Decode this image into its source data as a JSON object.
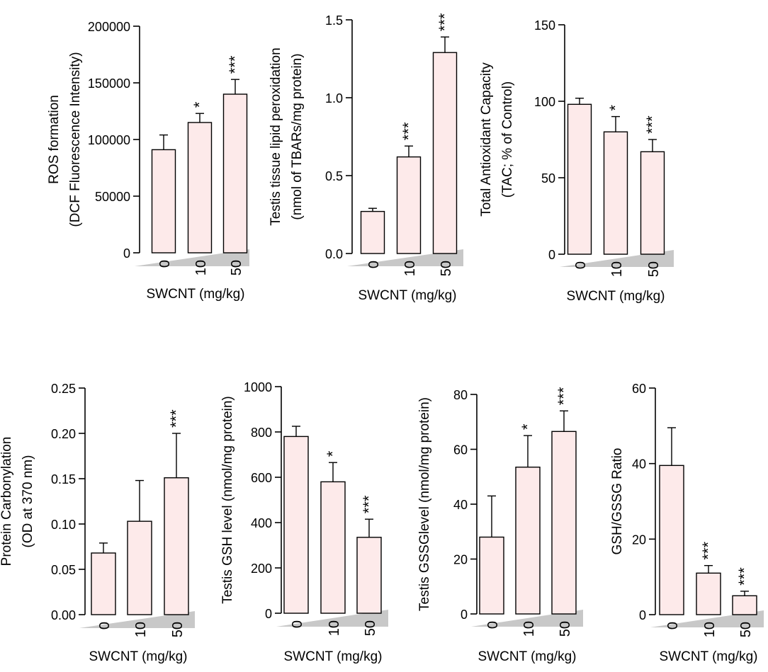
{
  "colors": {
    "bar_fill": "#fdeaea",
    "stroke": "#000000",
    "wedge": "#c8c8c8"
  },
  "chart_data": [
    {
      "type": "bar",
      "ylabel_lines": [
        "ROS formation",
        "(DCF Fluorescence Intensity)"
      ],
      "xlabel": "SWCNT (mg/kg)",
      "categories": [
        "0",
        "10",
        "50"
      ],
      "values": [
        91000,
        115000,
        140000
      ],
      "errors": [
        13000,
        8000,
        13000
      ],
      "significance": [
        "",
        "*",
        "***"
      ],
      "ylim": [
        0,
        200000
      ],
      "yticks": [
        0,
        50000,
        100000,
        150000,
        200000
      ],
      "ytick_labels": [
        "0",
        "50000",
        "100000",
        "150000",
        "200000"
      ]
    },
    {
      "type": "bar",
      "ylabel_lines": [
        "Testis tissue lipid peroxidation",
        "(nmol of TBARs/mg protein)"
      ],
      "xlabel": "SWCNT (mg/kg)",
      "categories": [
        "0",
        "10",
        "50"
      ],
      "values": [
        0.27,
        0.62,
        1.29
      ],
      "errors": [
        0.02,
        0.07,
        0.1
      ],
      "significance": [
        "",
        "***",
        "***"
      ],
      "ylim": [
        0,
        1.5
      ],
      "yticks": [
        0,
        0.5,
        1.0,
        1.5
      ],
      "ytick_labels": [
        "0.0",
        "0.5",
        "1.0",
        "1.5"
      ]
    },
    {
      "type": "bar",
      "ylabel_lines": [
        "Total Antioxidant Capacity",
        "(TAC; % of Control)"
      ],
      "xlabel": "SWCNT (mg/kg)",
      "categories": [
        "0",
        "10",
        "50"
      ],
      "values": [
        98,
        80,
        67
      ],
      "errors": [
        4,
        10,
        8
      ],
      "significance": [
        "",
        "*",
        "***"
      ],
      "ylim": [
        0,
        150
      ],
      "yticks": [
        0,
        50,
        100,
        150
      ],
      "ytick_labels": [
        "0",
        "50",
        "100",
        "150"
      ]
    },
    {
      "type": "bar",
      "ylabel_lines": [
        "Protein Carbonylation",
        "(OD at 370 nm)"
      ],
      "xlabel": "SWCNT (mg/kg)",
      "categories": [
        "0",
        "10",
        "50"
      ],
      "values": [
        0.068,
        0.103,
        0.151
      ],
      "errors": [
        0.011,
        0.045,
        0.049
      ],
      "significance": [
        "",
        "",
        "***"
      ],
      "ylim": [
        0,
        0.25
      ],
      "yticks": [
        0,
        0.05,
        0.1,
        0.15,
        0.2,
        0.25
      ],
      "ytick_labels": [
        "0.00",
        "0.05",
        "0.10",
        "0.15",
        "0.20",
        "0.25"
      ]
    },
    {
      "type": "bar",
      "ylabel_lines": [
        "Testis GSH level (nmol/mg protein)"
      ],
      "xlabel": "SWCNT (mg/kg)",
      "categories": [
        "0",
        "10",
        "50"
      ],
      "values": [
        780,
        580,
        335
      ],
      "errors": [
        45,
        85,
        80
      ],
      "significance": [
        "",
        "*",
        "***"
      ],
      "ylim": [
        0,
        1000
      ],
      "yticks": [
        0,
        200,
        400,
        600,
        800,
        1000
      ],
      "ytick_labels": [
        "0",
        "200",
        "400",
        "600",
        "800",
        "1000"
      ]
    },
    {
      "type": "bar",
      "ylabel_lines": [
        "Testis GSSGlevel (nmol/mg protein)"
      ],
      "xlabel": "SWCNT (mg/kg)",
      "categories": [
        "0",
        "10",
        "50"
      ],
      "values": [
        28,
        53.5,
        66.5
      ],
      "errors": [
        15,
        11.5,
        7.5
      ],
      "significance": [
        "",
        "*",
        "***"
      ],
      "ylim": [
        0,
        80
      ],
      "yticks": [
        0,
        20,
        40,
        60,
        80
      ],
      "ytick_labels": [
        "0",
        "20",
        "40",
        "60",
        "80"
      ]
    },
    {
      "type": "bar",
      "ylabel_lines": [
        "GSH/GSSG Ratio"
      ],
      "xlabel": "SWCNT (mg/kg)",
      "categories": [
        "0",
        "10",
        "50"
      ],
      "values": [
        39.5,
        11,
        5
      ],
      "errors": [
        10,
        2,
        1.2
      ],
      "significance": [
        "",
        "***",
        "***"
      ],
      "ylim": [
        0,
        60
      ],
      "yticks": [
        0,
        20,
        40,
        60
      ],
      "ytick_labels": [
        "0",
        "20",
        "40",
        "60"
      ]
    }
  ]
}
